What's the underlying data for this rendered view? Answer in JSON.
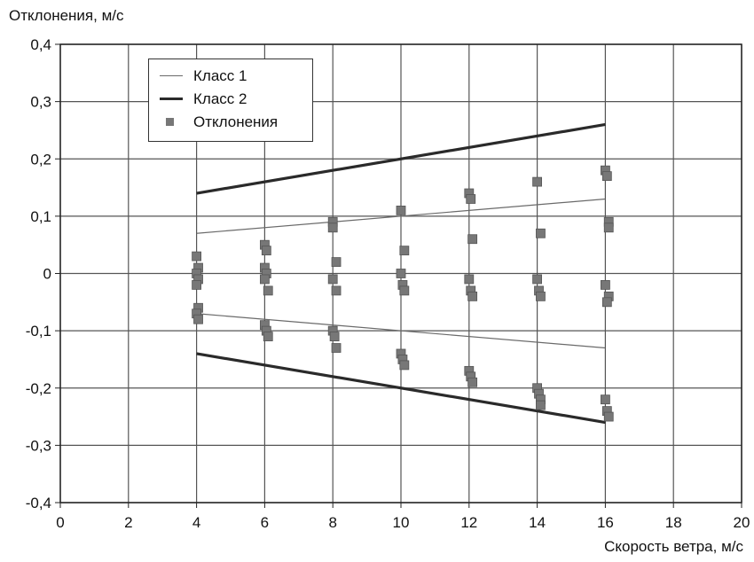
{
  "chart_data": {
    "type": "scatter",
    "ylabel": "Отклонения, м/с",
    "xlabel": "Скорость ветра, м/с",
    "xlim": [
      0,
      20
    ],
    "ylim": [
      -0.4,
      0.4
    ],
    "x_ticks": [
      "0",
      "2",
      "4",
      "6",
      "8",
      "10",
      "12",
      "14",
      "16",
      "18",
      "20"
    ],
    "y_ticks": [
      "-0,4",
      "-0,3",
      "-0,2",
      "-0,1",
      "0",
      "0,1",
      "0,2",
      "0,3",
      "0,4"
    ],
    "grid": true,
    "legend_position": "top-left",
    "series": [
      {
        "name": "Класс 1",
        "kind": "line",
        "color": "#6a6a6a",
        "segments": [
          {
            "x": [
              4,
              16
            ],
            "y": [
              0.07,
              0.13
            ]
          },
          {
            "x": [
              4,
              16
            ],
            "y": [
              -0.07,
              -0.13
            ]
          }
        ]
      },
      {
        "name": "Класс 2",
        "kind": "line",
        "color": "#2a2a2a",
        "segments": [
          {
            "x": [
              4,
              16
            ],
            "y": [
              0.14,
              0.26
            ]
          },
          {
            "x": [
              4,
              16
            ],
            "y": [
              -0.14,
              -0.26
            ]
          }
        ]
      },
      {
        "name": "Отклонения",
        "kind": "scatter",
        "color": "#777777",
        "points": [
          [
            4.0,
            0.03
          ],
          [
            4.05,
            0.01
          ],
          [
            4.0,
            0.0
          ],
          [
            4.05,
            -0.01
          ],
          [
            4.0,
            -0.02
          ],
          [
            4.05,
            -0.06
          ],
          [
            4.0,
            -0.07
          ],
          [
            4.05,
            -0.08
          ],
          [
            6.0,
            0.05
          ],
          [
            6.05,
            0.04
          ],
          [
            6.0,
            0.01
          ],
          [
            6.05,
            0.0
          ],
          [
            6.0,
            -0.01
          ],
          [
            6.1,
            -0.03
          ],
          [
            6.0,
            -0.09
          ],
          [
            6.05,
            -0.1
          ],
          [
            6.1,
            -0.11
          ],
          [
            8.0,
            0.09
          ],
          [
            8.0,
            0.08
          ],
          [
            8.1,
            0.02
          ],
          [
            8.0,
            -0.01
          ],
          [
            8.1,
            -0.03
          ],
          [
            8.0,
            -0.1
          ],
          [
            8.05,
            -0.11
          ],
          [
            8.1,
            -0.13
          ],
          [
            10.0,
            0.11
          ],
          [
            10.1,
            0.04
          ],
          [
            10.0,
            0.0
          ],
          [
            10.05,
            -0.02
          ],
          [
            10.1,
            -0.03
          ],
          [
            10.0,
            -0.14
          ],
          [
            10.05,
            -0.15
          ],
          [
            10.1,
            -0.16
          ],
          [
            12.0,
            0.14
          ],
          [
            12.05,
            0.13
          ],
          [
            12.1,
            0.06
          ],
          [
            12.0,
            -0.01
          ],
          [
            12.05,
            -0.03
          ],
          [
            12.1,
            -0.04
          ],
          [
            12.0,
            -0.17
          ],
          [
            12.05,
            -0.18
          ],
          [
            12.1,
            -0.19
          ],
          [
            14.0,
            0.16
          ],
          [
            14.1,
            0.07
          ],
          [
            14.0,
            -0.01
          ],
          [
            14.05,
            -0.03
          ],
          [
            14.1,
            -0.04
          ],
          [
            14.0,
            -0.2
          ],
          [
            14.05,
            -0.21
          ],
          [
            14.1,
            -0.22
          ],
          [
            14.1,
            -0.23
          ],
          [
            16.0,
            0.18
          ],
          [
            16.05,
            0.17
          ],
          [
            16.1,
            0.09
          ],
          [
            16.1,
            0.08
          ],
          [
            16.0,
            -0.02
          ],
          [
            16.1,
            -0.04
          ],
          [
            16.05,
            -0.05
          ],
          [
            16.0,
            -0.22
          ],
          [
            16.05,
            -0.24
          ],
          [
            16.1,
            -0.25
          ]
        ]
      }
    ]
  }
}
